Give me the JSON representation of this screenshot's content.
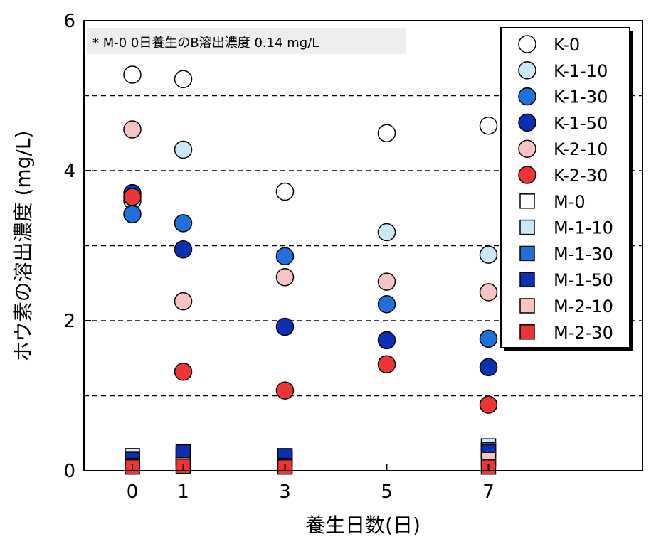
{
  "chart_data": {
    "type": "scatter",
    "title": "",
    "xlabel": "養生日数(日)",
    "ylabel": "ホウ素の溶出濃度 (mg/L)",
    "xlim": [
      -1,
      10
    ],
    "ylim": [
      0,
      6
    ],
    "x_ticks": [
      0,
      1,
      3,
      5,
      7
    ],
    "y_ticks": [
      0,
      2,
      4,
      6
    ],
    "grid": "horizontal dashed at 1, 2, 3, 4, 5",
    "legend_position": "top-right",
    "annotation": "* M-0 0日養生のB溶出濃度 0.14 mg/L",
    "series": [
      {
        "name": "K-0",
        "marker": "circle",
        "color": "#ffffff",
        "x": [
          0,
          1,
          3,
          5,
          7
        ],
        "y": [
          5.28,
          5.22,
          3.72,
          4.5,
          4.6
        ]
      },
      {
        "name": "K-1-10",
        "marker": "circle",
        "color": "#cce8f6",
        "x": [
          0,
          1,
          3,
          5,
          7
        ],
        "y": [
          3.6,
          4.28,
          null,
          3.18,
          2.88
        ]
      },
      {
        "name": "K-1-30",
        "marker": "circle",
        "color": "#1f6fdc",
        "x": [
          0,
          1,
          3,
          5,
          7
        ],
        "y": [
          3.42,
          3.3,
          2.86,
          2.22,
          1.76
        ]
      },
      {
        "name": "K-1-50",
        "marker": "circle",
        "color": "#0c2fb5",
        "x": [
          0,
          1,
          3,
          5,
          7
        ],
        "y": [
          3.7,
          2.95,
          1.92,
          1.74,
          1.38
        ]
      },
      {
        "name": "K-2-10",
        "marker": "circle",
        "color": "#f7c3c3",
        "x": [
          0,
          1,
          3,
          5,
          7
        ],
        "y": [
          4.55,
          2.26,
          2.58,
          2.52,
          2.38
        ]
      },
      {
        "name": "K-2-30",
        "marker": "circle",
        "color": "#ee3535",
        "x": [
          0,
          1,
          3,
          5,
          7
        ],
        "y": [
          3.65,
          1.32,
          1.07,
          1.42,
          0.88
        ]
      },
      {
        "name": "M-0",
        "marker": "square",
        "color": "#ffffff",
        "x": [
          0,
          1,
          3,
          5,
          7
        ],
        "y": [
          0.14,
          null,
          null,
          null,
          null
        ]
      },
      {
        "name": "M-1-10",
        "marker": "square",
        "color": "#cce8f6",
        "x": [
          0,
          1,
          3,
          5,
          7
        ],
        "y": [
          0.2,
          0.22,
          0.19,
          null,
          0.33
        ]
      },
      {
        "name": "M-1-30",
        "marker": "square",
        "color": "#1f6fdc",
        "x": [
          0,
          1,
          3,
          5,
          7
        ],
        "y": [
          0.16,
          0.18,
          0.16,
          null,
          0.28
        ]
      },
      {
        "name": "M-1-50",
        "marker": "square",
        "color": "#0c2fb5",
        "x": [
          0,
          1,
          3,
          5,
          7
        ],
        "y": [
          0.15,
          0.25,
          0.2,
          null,
          0.25
        ]
      },
      {
        "name": "M-2-10",
        "marker": "square",
        "color": "#f7c3c3",
        "x": [
          0,
          1,
          3,
          5,
          7
        ],
        "y": [
          0.07,
          0.08,
          0.07,
          null,
          0.15
        ]
      },
      {
        "name": "M-2-30",
        "marker": "square",
        "color": "#ee3535",
        "x": [
          0,
          1,
          3,
          5,
          7
        ],
        "y": [
          0.05,
          0.06,
          0.05,
          null,
          0.05
        ]
      }
    ]
  }
}
